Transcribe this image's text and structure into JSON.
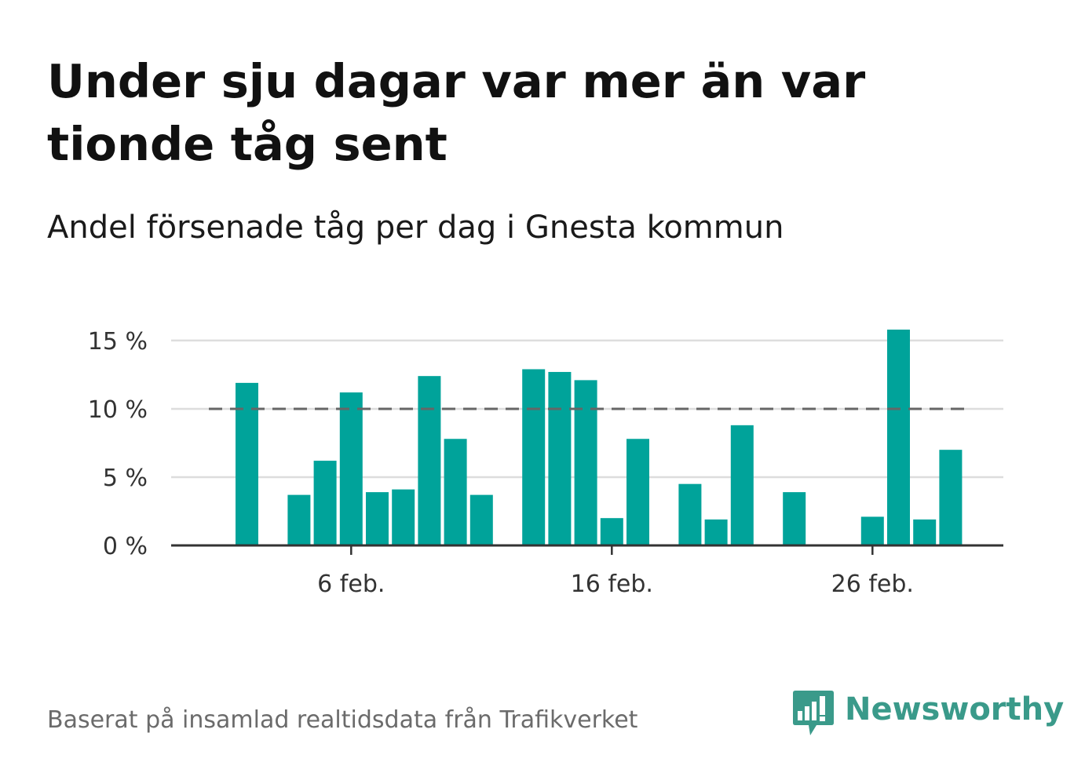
{
  "title": "Under sju dagar var mer än var tionde tåg sent",
  "subtitle": "Andel försenade tåg per dag i Gnesta kommun",
  "source": "Baserat på insamlad realtidsdata från Trafikverket",
  "brand": {
    "name": "Newsworthy",
    "icon": "newsworthy-logo-icon",
    "color": "#3a9a8a"
  },
  "colors": {
    "bar": "#00a39a",
    "reference_line": "#666666",
    "grid": "#dddddd",
    "axis": "#333333"
  },
  "chart_data": {
    "type": "bar",
    "x": [
      "2 feb.",
      "3 feb.",
      "4 feb.",
      "5 feb.",
      "6 feb.",
      "7 feb.",
      "8 feb.",
      "9 feb.",
      "10 feb.",
      "11 feb.",
      "12 feb.",
      "13 feb.",
      "14 feb.",
      "15 feb.",
      "16 feb.",
      "17 feb.",
      "18 feb.",
      "19 feb.",
      "20 feb.",
      "21 feb.",
      "22 feb.",
      "23 feb.",
      "24 feb.",
      "25 feb.",
      "26 feb.",
      "27 feb.",
      "28 feb.",
      "29 feb."
    ],
    "values": [
      11.9,
      0,
      3.7,
      6.2,
      11.2,
      3.9,
      4.1,
      12.4,
      7.8,
      3.7,
      0,
      12.9,
      12.7,
      12.1,
      2.0,
      7.8,
      0,
      4.5,
      1.9,
      8.8,
      0,
      3.9,
      0,
      0,
      2.1,
      15.8,
      1.9,
      7.0
    ],
    "x_ticks": [
      "6 feb.",
      "16 feb.",
      "26 feb."
    ],
    "y_ticks": [
      "0 %",
      "5 %",
      "10 %",
      "15 %"
    ],
    "y_tick_values": [
      0,
      5,
      10,
      15
    ],
    "ylim": [
      0,
      15.8
    ],
    "reference_line": 10,
    "grid": true,
    "xlabel": "",
    "ylabel": ""
  }
}
